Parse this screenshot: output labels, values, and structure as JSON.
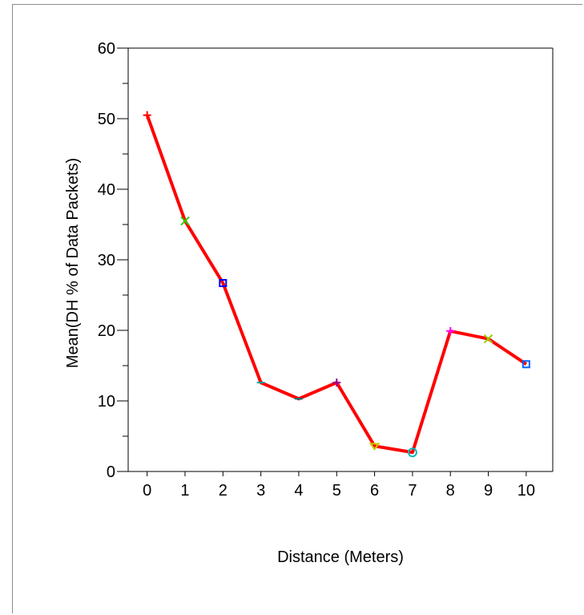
{
  "chart_data": {
    "type": "line",
    "title": "",
    "xlabel": "Distance (Meters)",
    "ylabel": "Mean(DH % of Data Packets)",
    "x": [
      0,
      1,
      2,
      3,
      4,
      5,
      6,
      7,
      8,
      9,
      10
    ],
    "x_tick_labels": [
      "0",
      "1",
      "2",
      "3",
      "4",
      "5",
      "6",
      "7",
      "8",
      "9",
      "10"
    ],
    "y_tick_labels": [
      "0",
      "10",
      "20",
      "30",
      "40",
      "50",
      "60"
    ],
    "y_ticks": [
      0,
      10,
      20,
      30,
      40,
      50,
      60
    ],
    "xlim": [
      -0.5,
      10.7
    ],
    "ylim": [
      0,
      60
    ],
    "series": [
      {
        "values": [
          50.5,
          35.5,
          26.7,
          12.6,
          10.3,
          12.6,
          3.6,
          2.7,
          19.9,
          18.8,
          15.2
        ]
      }
    ],
    "markers": [
      "plus",
      "x",
      "square",
      "tick",
      "tick",
      "plus",
      "triangle-down",
      "circle",
      "plus",
      "x",
      "square"
    ],
    "marker_colors": [
      "#ff0000",
      "#33cc00",
      "#0000ff",
      "#00a0a0",
      "#008080",
      "#990099",
      "#cccc00",
      "#00bbbb",
      "#ff00ff",
      "#99cc00",
      "#0066ff"
    ],
    "line_color": "#ff0000",
    "grid": false,
    "legend": "none"
  }
}
